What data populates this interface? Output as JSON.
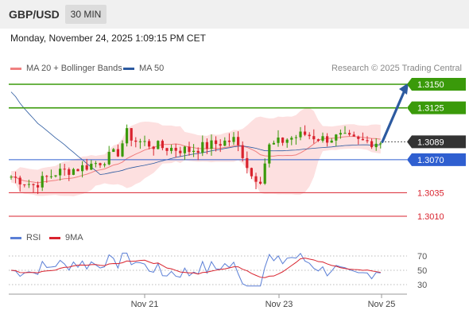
{
  "header": {
    "pair": "GBP/USD",
    "timeframe": "30 MIN"
  },
  "datetime": "Monday, November 24, 2025 1:09:15 PM CET",
  "legend": {
    "ma20": {
      "label": "MA 20 + Bollinger Bands",
      "color": "#f08080"
    },
    "ma50": {
      "label": "MA 50",
      "color": "#2c5aa0"
    },
    "rsi": {
      "label": "RSI",
      "color": "#5b7fd6"
    },
    "rsi_ma": {
      "label": "9MA",
      "color": "#d9232e"
    }
  },
  "copyright": "Research © 2025 Trading Central",
  "chart_data": [
    {
      "type": "candlestick",
      "y_range": [
        1.2995,
        1.3165
      ],
      "x_ticks": [
        "Nov 21",
        "Nov 23",
        "Nov 25"
      ],
      "levels": [
        {
          "value": 1.315,
          "label": "1.3150",
          "color": "#3a9a0a"
        },
        {
          "value": 1.3125,
          "label": "1.3125",
          "color": "#3a9a0a"
        },
        {
          "value": 1.3089,
          "label": "1.3089",
          "color": "#333333"
        },
        {
          "value": 1.307,
          "label": "1.3070",
          "color": "#2f5fd0"
        },
        {
          "value": 1.3035,
          "label": "1.3035",
          "color": "#d9232e"
        },
        {
          "value": 1.301,
          "label": "1.3010",
          "color": "#d9232e"
        }
      ],
      "last_price": 1.3089,
      "forecast_target": 1.315
    },
    {
      "type": "line",
      "title": "RSI",
      "y_ticks": [
        70,
        50,
        30
      ]
    }
  ]
}
